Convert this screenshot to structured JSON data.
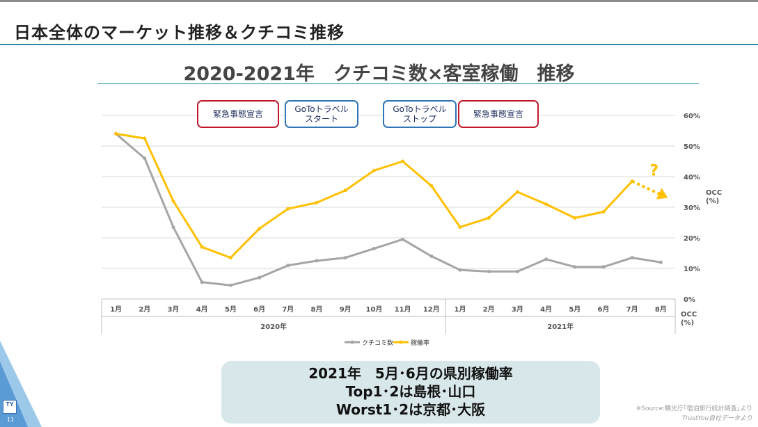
{
  "page": {
    "title": "日本全体のマーケット推移＆クチコミ推移",
    "page_number": "11",
    "logo_text": "TY"
  },
  "colors": {
    "accent": "#2a8aa8",
    "kuchikomi_series": "#a5a5a5",
    "occ_series": "#ffc000",
    "red_box": "#c0192c",
    "blue_box": "#2e75b6",
    "info_bg": "#d8e7ea"
  },
  "annotations": [
    {
      "text": "緊急事態宣言",
      "style": "red"
    },
    {
      "text": "GoToトラベル\nスタート",
      "style": "blue"
    },
    {
      "text": "GoToトラベル\nストップ",
      "style": "blue"
    },
    {
      "text": "緊急事態宣言",
      "style": "red"
    }
  ],
  "question_mark": "?",
  "info_box": {
    "line1": "2021年　5月･6月の県別稼働率",
    "line2": "Top1･2は島根･山口",
    "line3": "Worst1･2は京都･大阪"
  },
  "source": {
    "line1": "※Source:観光庁｢宿泊旅行統計調査｣より",
    "line2": "TrustYou自社データより"
  },
  "chart_data": {
    "type": "line",
    "title": "2020-2021年　クチコミ数×客室稼働　推移",
    "categories": [
      "1月",
      "2月",
      "3月",
      "4月",
      "5月",
      "6月",
      "7月",
      "8月",
      "9月",
      "10月",
      "11月",
      "12月",
      "1月",
      "2月",
      "3月",
      "4月",
      "5月",
      "6月",
      "7月",
      "8月"
    ],
    "year_groups": [
      {
        "label": "2020年",
        "span": 12
      },
      {
        "label": "2021年",
        "span": 8
      }
    ],
    "series": [
      {
        "name": "クチコミ数",
        "axis": "left",
        "values": [
          54,
          46,
          23.5,
          5.5,
          4.5,
          7,
          11,
          12.5,
          13.5,
          16.5,
          19.5,
          14,
          9.5,
          9,
          9,
          13,
          10.5,
          10.5,
          13.5,
          12
        ]
      },
      {
        "name": "稼働率",
        "axis": "right",
        "values": [
          54,
          52.5,
          32,
          17,
          13.5,
          23,
          29.5,
          31.5,
          35.5,
          42,
          45,
          37,
          23.5,
          26.5,
          35,
          31,
          26.5,
          28.5,
          38.5,
          34
        ]
      }
    ],
    "dashed_projection": {
      "series": "稼働率",
      "from_index": 18,
      "to_index": 19
    },
    "y_right": {
      "ticks": [
        "0%",
        "10%",
        "20%",
        "30%",
        "40%",
        "50%",
        "60%"
      ],
      "ylim": [
        0,
        60
      ],
      "label": "OCC\n(%)"
    },
    "x_corner_label": "OCC\n(%)",
    "grid": true,
    "legend_position": "bottom"
  }
}
